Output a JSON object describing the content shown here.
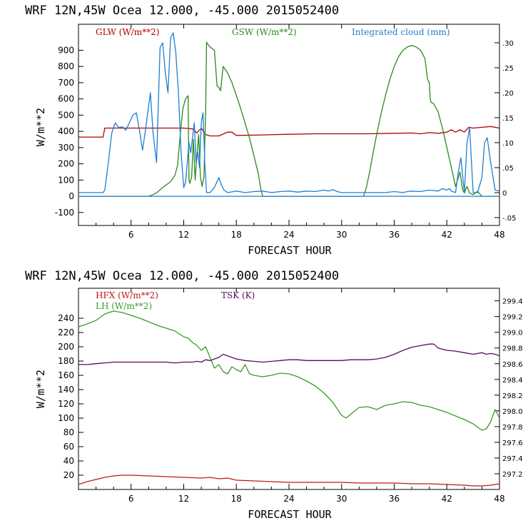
{
  "colors": {
    "glw": "#b00000",
    "gsw": "#2a8a1a",
    "cloud": "#1e7fd0",
    "hfx": "#c01818",
    "lh": "#3a9a28",
    "tsk": "#5a0a5a",
    "zero": "#1e7fd0"
  },
  "chart_data": [
    {
      "type": "line",
      "header": "WRF  12N,45W Ocea  12.000, -45.000  2015052400",
      "xlabel": "FORECAST HOUR",
      "ylabel": "W/m**2",
      "xlim": [
        0,
        48
      ],
      "ylim": [
        -180,
        1060
      ],
      "xticks": [
        6,
        12,
        18,
        24,
        30,
        36,
        42,
        48
      ],
      "yticks": [
        -100,
        0,
        100,
        200,
        300,
        400,
        500,
        600,
        700,
        800,
        900
      ],
      "y2lim": [
        -0.0658,
        0.3371
      ],
      "y2ticks": [
        -0.05,
        0,
        0.05,
        0.1,
        0.15,
        0.2,
        0.25,
        0.3
      ],
      "y2ticklabels": [
        "-.05",
        "0",
        ".05",
        ".10",
        ".15",
        ".20",
        ".25",
        ".30"
      ],
      "series": [
        {
          "name": "GLW (W/m**2)",
          "axis": "left",
          "color_key": "glw",
          "x": [
            0,
            2.8,
            3,
            5,
            8,
            10,
            12,
            13,
            13.5,
            14,
            14.5,
            15,
            16,
            17,
            17.5,
            18,
            21,
            24,
            27,
            30,
            33,
            36,
            38,
            39,
            40,
            41,
            42,
            42.5,
            43,
            43.5,
            44,
            44.5,
            45,
            46,
            47,
            48
          ],
          "y": [
            365,
            365,
            420,
            420,
            420,
            420,
            420,
            415,
            390,
            420,
            380,
            372,
            372,
            395,
            395,
            375,
            378,
            382,
            385,
            385,
            385,
            388,
            390,
            385,
            392,
            388,
            395,
            410,
            395,
            410,
            395,
            425,
            420,
            425,
            430,
            420
          ]
        },
        {
          "name": "GSW (W/m**2)",
          "axis": "left",
          "color_key": "gsw",
          "x": [
            0,
            8,
            8.5,
            9,
            9.5,
            10,
            10.5,
            11,
            11.3,
            11.6,
            11.9,
            12.2,
            12.5,
            12.6,
            12.7,
            12.9,
            13.1,
            13.3,
            13.5,
            13.7,
            13.9,
            14.1,
            14.3,
            14.5,
            14.6,
            14.7,
            15,
            15.5,
            15.8,
            16,
            16.2,
            16.5,
            17,
            17.5,
            18,
            18.5,
            19,
            19.5,
            20,
            20.5,
            20.8,
            21,
            32.5,
            32.8,
            33.2,
            33.6,
            34,
            34.5,
            35,
            35.5,
            36,
            36.5,
            37,
            37.5,
            38,
            38.5,
            39,
            39.5,
            39.8,
            40,
            40.1,
            40.2,
            40.5,
            41,
            41.5,
            42,
            42.5,
            43,
            43.5,
            43.8,
            44,
            44.3,
            44.6,
            45,
            45.5,
            46,
            48
          ],
          "y": [
            0,
            0,
            10,
            25,
            50,
            70,
            90,
            130,
            190,
            380,
            540,
            600,
            620,
            100,
            80,
            120,
            350,
            100,
            250,
            380,
            120,
            60,
            120,
            520,
            950,
            940,
            920,
            900,
            680,
            670,
            650,
            800,
            760,
            700,
            620,
            540,
            450,
            360,
            250,
            140,
            40,
            0,
            0,
            50,
            150,
            270,
            380,
            510,
            620,
            720,
            800,
            860,
            900,
            920,
            930,
            920,
            900,
            850,
            720,
            700,
            600,
            580,
            570,
            520,
            420,
            300,
            180,
            60,
            150,
            40,
            20,
            60,
            20,
            10,
            30,
            0,
            0
          ]
        },
        {
          "name": "Integrated cloud (mm)",
          "axis": "right",
          "color_key": "cloud",
          "x": [
            0,
            2.8,
            3.0,
            3.4,
            3.8,
            4.2,
            4.6,
            5.0,
            5.4,
            5.8,
            6.2,
            6.6,
            7.0,
            7.3,
            7.6,
            7.9,
            8.2,
            8.5,
            8.9,
            9.3,
            9.6,
            9.9,
            10.2,
            10.5,
            10.8,
            11.1,
            11.4,
            11.7,
            12.0,
            12.2,
            12.4,
            12.6,
            12.8,
            13.0,
            13.2,
            13.4,
            13.6,
            13.8,
            14.0,
            14.2,
            14.4,
            14.6,
            14.8,
            15.0,
            15.5,
            16.0,
            16.3,
            16.6,
            17.0,
            18.0,
            19.0,
            20.0,
            21.0,
            22.0,
            23.0,
            24.0,
            25.0,
            26.0,
            27.0,
            28.0,
            28.5,
            29.0,
            29.5,
            30.0,
            30.5,
            31.0,
            32.0,
            34.0,
            35.0,
            36.0,
            37.0,
            37.5,
            38.0,
            39.0,
            40.0,
            40.5,
            41.0,
            41.5,
            42.0,
            42.3,
            42.5,
            43.0,
            43.3,
            43.6,
            44.0,
            44.3,
            44.6,
            45.0,
            45.5,
            46.0,
            46.3,
            46.6,
            47.0,
            47.5,
            48.0
          ],
          "y": [
            0,
            0,
            0.005,
            0.06,
            0.12,
            0.14,
            0.13,
            0.132,
            0.125,
            0.14,
            0.155,
            0.16,
            0.12,
            0.085,
            0.12,
            0.16,
            0.2,
            0.12,
            0.06,
            0.29,
            0.3,
            0.24,
            0.2,
            0.31,
            0.32,
            0.28,
            0.2,
            0.08,
            0.01,
            0.02,
            0.06,
            0.1,
            0.08,
            0.11,
            0.14,
            0.06,
            0.08,
            0.05,
            0.14,
            0.16,
            0.06,
            0.0,
            0.0,
            0.0,
            0.01,
            0.03,
            0.015,
            0.005,
            0.0,
            0.003,
            0.0,
            0.002,
            0.003,
            0.0,
            0.002,
            0.003,
            0.001,
            0.003,
            0.002,
            0.005,
            0.003,
            0.006,
            0.002,
            0.0,
            0.0,
            0.0,
            0.0,
            0.0,
            0.0,
            0.002,
            0.0,
            0.002,
            0.003,
            0.002,
            0.005,
            0.004,
            0.003,
            0.008,
            0.005,
            0.008,
            0.003,
            0.0,
            0.04,
            0.07,
            0.0,
            0.1,
            0.13,
            0.0,
            0.0,
            0.03,
            0.1,
            0.11,
            0.06,
            0.005,
            0.003
          ]
        },
        {
          "name": "zero",
          "axis": "left",
          "color_key": "zero",
          "x": [
            0,
            48
          ],
          "y": [
            0,
            0
          ]
        }
      ]
    },
    {
      "type": "line",
      "header": "WRF  12N,45W Ocea  12.000, -45.000  2015052400",
      "xlabel": "FORECAST HOUR",
      "ylabel": "W/m**2",
      "xlim": [
        0,
        48
      ],
      "ylim": [
        0,
        282
      ],
      "xticks": [
        6,
        12,
        18,
        24,
        30,
        36,
        42,
        48
      ],
      "yticks": [
        20,
        40,
        60,
        80,
        100,
        120,
        140,
        160,
        180,
        200,
        220,
        240
      ],
      "y2lim": [
        297.0,
        299.56
      ],
      "y2ticks": [
        297.2,
        297.4,
        297.6,
        297.8,
        298.0,
        298.2,
        298.4,
        298.6,
        298.8,
        299.0,
        299.2,
        299.4
      ],
      "y2ticklabels": [
        "297.2",
        "297.4",
        "297.6",
        "297.8",
        "298.0",
        "298.2",
        "298.4",
        "298.6",
        "298.8",
        "299.0",
        "299.2",
        "299.4"
      ],
      "series": [
        {
          "name": "HFX (W/m**2)",
          "axis": "left",
          "color_key": "hfx",
          "x": [
            0,
            1,
            2,
            3,
            4,
            5,
            6,
            8,
            10,
            12,
            14,
            15,
            16,
            17,
            18,
            20,
            22,
            24,
            26,
            28,
            30,
            32,
            34,
            36,
            38,
            40,
            42,
            44,
            45,
            46,
            47,
            48
          ],
          "y": [
            7,
            11,
            14,
            17,
            19,
            20,
            20,
            19,
            18,
            17,
            16,
            17,
            15,
            16,
            13,
            12,
            11,
            10,
            10,
            10,
            10,
            9,
            9,
            9,
            8,
            8,
            7,
            6,
            5,
            5,
            6,
            8
          ]
        },
        {
          "name": "LH (W/m**2)",
          "axis": "left",
          "color_key": "lh",
          "x": [
            0,
            0.5,
            1,
            2,
            3,
            4,
            5,
            6,
            7,
            8,
            9,
            10,
            11,
            12,
            12.5,
            13,
            13.5,
            14,
            14.5,
            15,
            15.5,
            16,
            16.5,
            17,
            17.5,
            18,
            18.5,
            19,
            19.5,
            20,
            21,
            22,
            23,
            24,
            25,
            26,
            27,
            28,
            29,
            30,
            30.5,
            31,
            32,
            33,
            34,
            35,
            36,
            37,
            38,
            39,
            40,
            41,
            42,
            43,
            44,
            45,
            46,
            46.5,
            47,
            47.5,
            48
          ],
          "y": [
            228,
            230,
            232,
            237,
            246,
            250,
            248,
            244,
            240,
            235,
            230,
            226,
            222,
            214,
            212,
            206,
            202,
            195,
            200,
            185,
            170,
            175,
            165,
            162,
            172,
            168,
            165,
            175,
            162,
            160,
            158,
            160,
            163,
            162,
            158,
            152,
            145,
            135,
            122,
            104,
            100,
            105,
            115,
            116,
            112,
            118,
            120,
            123,
            122,
            118,
            116,
            112,
            108,
            103,
            98,
            92,
            83,
            85,
            95,
            112,
            100
          ]
        },
        {
          "name": "TSK (K)",
          "axis": "right",
          "color_key": "tsk",
          "x": [
            0,
            1,
            2,
            3,
            4,
            5,
            6,
            7,
            8,
            9,
            10,
            11,
            12,
            13,
            13.5,
            14,
            14.5,
            15,
            15.5,
            16,
            16.5,
            17,
            18,
            19,
            20,
            21,
            22,
            23,
            24,
            25,
            26,
            27,
            28,
            29,
            30,
            31,
            32,
            33,
            34,
            35,
            36,
            37,
            38,
            39,
            40,
            40.5,
            41,
            42,
            43,
            44,
            45,
            46,
            46.5,
            47,
            47.5,
            48
          ],
          "y": [
            298.59,
            298.59,
            298.6,
            298.61,
            298.62,
            298.62,
            298.62,
            298.62,
            298.62,
            298.62,
            298.62,
            298.61,
            298.62,
            298.62,
            298.63,
            298.62,
            298.65,
            298.64,
            298.66,
            298.68,
            298.72,
            298.7,
            298.66,
            298.64,
            298.63,
            298.62,
            298.63,
            298.64,
            298.65,
            298.65,
            298.64,
            298.64,
            298.64,
            298.64,
            298.64,
            298.65,
            298.65,
            298.65,
            298.66,
            298.68,
            298.72,
            298.77,
            298.81,
            298.83,
            298.85,
            298.85,
            298.8,
            298.77,
            298.76,
            298.74,
            298.72,
            298.74,
            298.72,
            298.73,
            298.72,
            298.7
          ]
        }
      ]
    }
  ],
  "panels": [
    {
      "header": "WRF  12N,45W Ocea  12.000, -45.000  2015052400",
      "xlabel": "FORECAST HOUR",
      "ylabel": "W/m**2",
      "legend": [
        {
          "label": "GLW (W/m**2)"
        },
        {
          "label": "GSW (W/m**2)"
        },
        {
          "label": "Integrated cloud (mm)"
        }
      ]
    },
    {
      "header": "WRF  12N,45W Ocea  12.000, -45.000  2015052400",
      "xlabel": "FORECAST HOUR",
      "ylabel": "W/m**2",
      "legend": [
        {
          "label": "HFX (W/m**2)"
        },
        {
          "label": "LH  (W/m**2)"
        },
        {
          "label": "TSK (K)"
        }
      ]
    }
  ]
}
